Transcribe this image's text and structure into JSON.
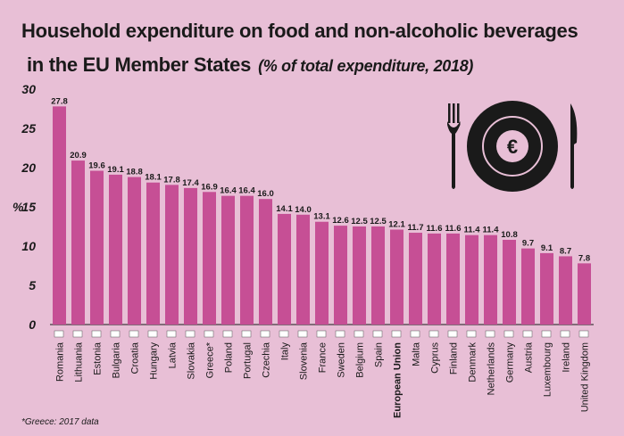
{
  "title": {
    "line1": "Household expenditure on food and non-alcoholic beverages",
    "line2": "in the EU Member States",
    "subtitle": "(% of total expenditure, 2018)"
  },
  "footnote": "*Greece: 2017 data",
  "icon": "plate-fork-knife-euro-icon",
  "colors": {
    "background": "#e8bfd6",
    "bar": "#c64f95",
    "text": "#1a1a1a"
  },
  "chart_data": {
    "type": "bar",
    "ylabel": "%",
    "ylim": [
      0,
      30
    ],
    "yticks": [
      0,
      5,
      10,
      15,
      20,
      25,
      30
    ],
    "grid": false,
    "categories": [
      "Romania",
      "Lithuania",
      "Estonia",
      "Bulgaria",
      "Croatia",
      "Hungary",
      "Latvia",
      "Slovakia",
      "Greece*",
      "Poland",
      "Portugal",
      "Czechia",
      "Italy",
      "Slovenia",
      "France",
      "Sweden",
      "Belgium",
      "Spain",
      "European Union",
      "Malta",
      "Cyprus",
      "Finland",
      "Denmark",
      "Netherlands",
      "Germany",
      "Austria",
      "Luxembourg",
      "Ireland",
      "United Kingdom"
    ],
    "values": [
      27.8,
      20.9,
      19.6,
      19.1,
      18.8,
      18.1,
      17.8,
      17.4,
      16.9,
      16.4,
      16.4,
      16.0,
      14.1,
      14.0,
      13.1,
      12.6,
      12.5,
      12.5,
      12.1,
      11.7,
      11.6,
      11.6,
      11.4,
      11.4,
      10.8,
      9.7,
      9.1,
      8.7,
      7.8
    ],
    "value_labels": [
      "27.8",
      "20.9",
      "19.6",
      "19.1",
      "18.8",
      "18.1",
      "17.8",
      "17.4",
      "16.9",
      "16.4",
      "16.4",
      "16.0",
      "14.1",
      "14.0",
      "13.1",
      "12.6",
      "12.5",
      "12.5",
      "12.1",
      "11.7",
      "11.6",
      "11.6",
      "11.4",
      "11.4",
      "10.8",
      "9.7",
      "9.1",
      "8.7",
      "7.8"
    ],
    "highlight_category": "European Union"
  }
}
